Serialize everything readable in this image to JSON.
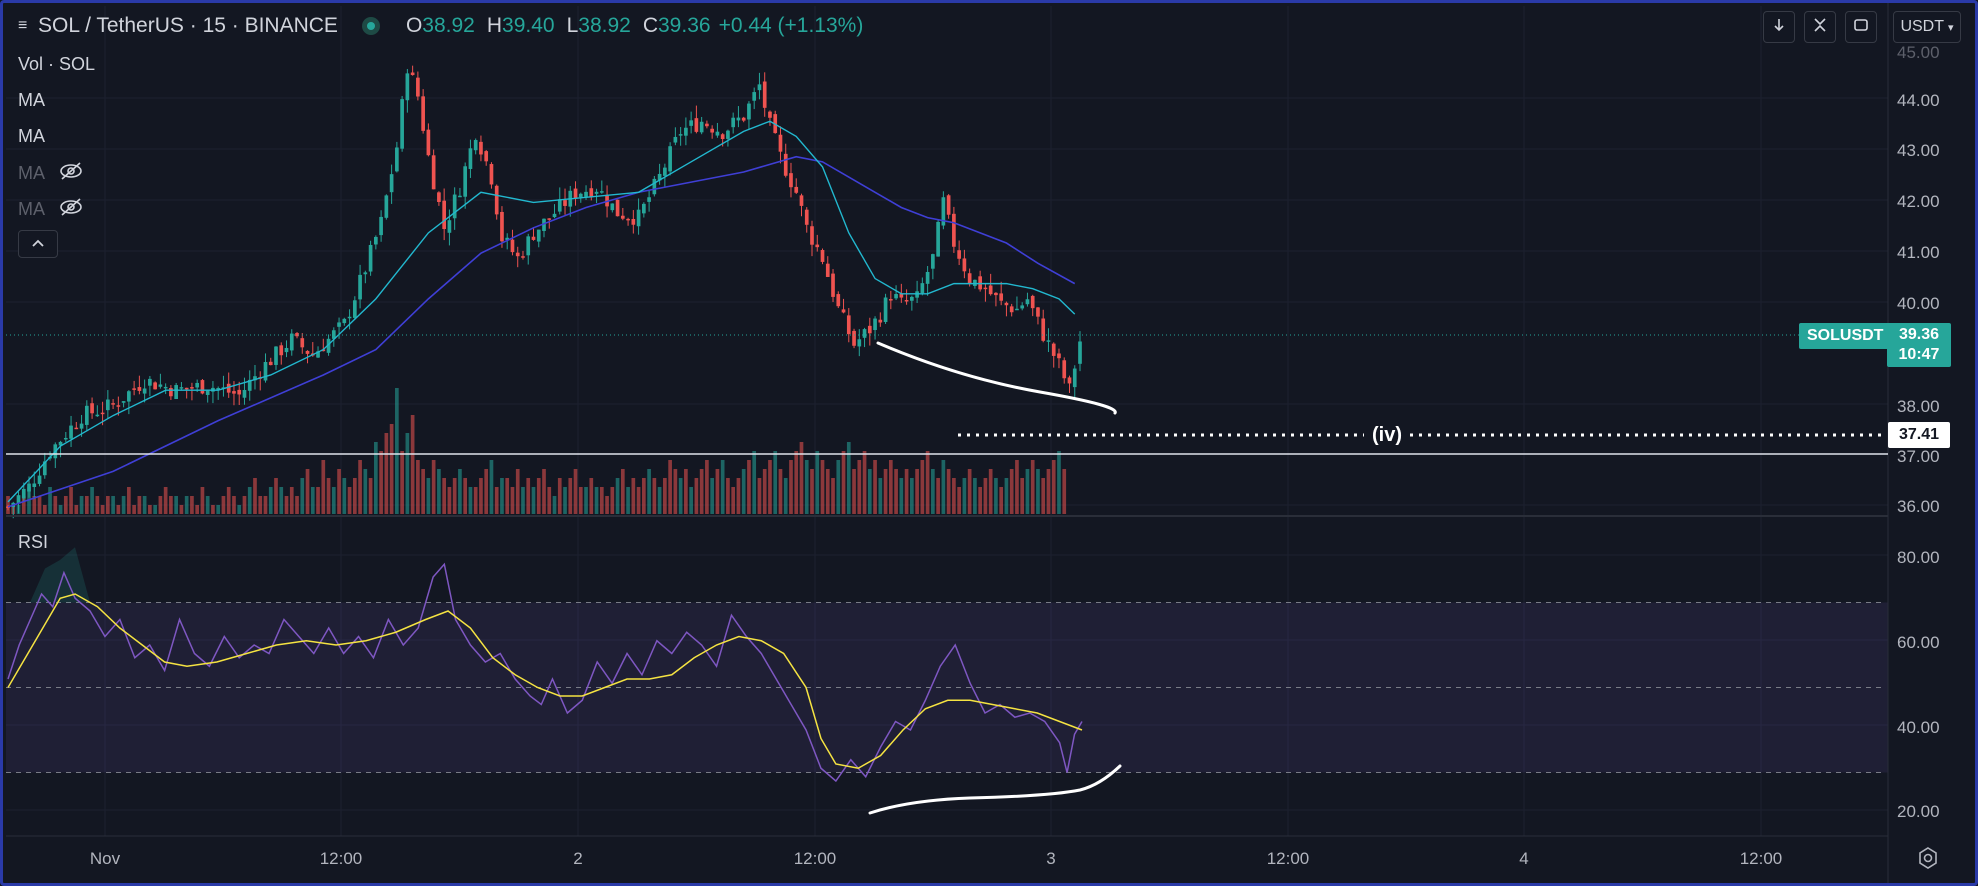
{
  "header": {
    "symbol": "SOL / TetherUS · 15 · BINANCE",
    "o_label": "O",
    "o_value": "38.92",
    "h_label": "H",
    "h_value": "39.40",
    "l_label": "L",
    "l_value": "38.92",
    "c_label": "C",
    "c_value": "39.36",
    "change": "+0.44 (+1.13%)",
    "currency": "USDT"
  },
  "indicators": {
    "vol": "Vol · SOL",
    "ma1": "MA",
    "ma2": "MA",
    "ma3": "MA",
    "ma4": "MA",
    "rsi": "RSI"
  },
  "price_scale": {
    "top_label": "45.00",
    "labels": [
      "44.00",
      "43.00",
      "42.00",
      "41.00",
      "40.00",
      "38.00",
      "37.00",
      "36.00"
    ],
    "current_symbol": "SOLUSDT",
    "current_price": "39.36",
    "countdown": "10:47",
    "level_value": "37.41",
    "level_label": "(iv)"
  },
  "rsi_scale": {
    "labels": [
      "80.00",
      "60.00",
      "40.00",
      "20.00"
    ]
  },
  "time_axis": {
    "labels": [
      "Nov",
      "12:00",
      "2",
      "12:00",
      "3",
      "12:00",
      "4",
      "12:00"
    ]
  },
  "colors": {
    "bg": "#131722",
    "up": "#26a69a",
    "down": "#ef5350",
    "ma_fast": "#22b8cf",
    "ma_slow": "#3f3fd6",
    "rsi": "#7e57c2",
    "rsi_ma": "#f5e342",
    "annotation": "#ffffff"
  },
  "chart_data": [
    {
      "type": "candlestick",
      "title": "SOL / TetherUS · 15 · BINANCE",
      "ylim": [
        35.8,
        45.2
      ],
      "close_path": [
        [
          0,
          36.1
        ],
        [
          4,
          36.5
        ],
        [
          8,
          37.2
        ],
        [
          14,
          37.9
        ],
        [
          20,
          38.1
        ],
        [
          26,
          38.6
        ],
        [
          32,
          38.4
        ],
        [
          38,
          38.5
        ],
        [
          44,
          38.3
        ],
        [
          48,
          38.8
        ],
        [
          54,
          39.4
        ],
        [
          58,
          39.1
        ],
        [
          64,
          39.7
        ],
        [
          68,
          40.8
        ],
        [
          71,
          41.7
        ],
        [
          74,
          43.2
        ],
        [
          76,
          44.8
        ],
        [
          78,
          44.2
        ],
        [
          80,
          43.0
        ],
        [
          83,
          41.6
        ],
        [
          86,
          42.4
        ],
        [
          89,
          43.5
        ],
        [
          92,
          42.6
        ],
        [
          94,
          41.4
        ],
        [
          97,
          41.0
        ],
        [
          100,
          41.5
        ],
        [
          104,
          41.9
        ],
        [
          108,
          42.3
        ],
        [
          112,
          42.4
        ],
        [
          116,
          41.9
        ],
        [
          120,
          41.8
        ],
        [
          124,
          42.6
        ],
        [
          128,
          43.5
        ],
        [
          132,
          43.7
        ],
        [
          136,
          43.5
        ],
        [
          140,
          43.8
        ],
        [
          143,
          44.4
        ],
        [
          145,
          43.6
        ],
        [
          147,
          43.0
        ],
        [
          150,
          42.3
        ],
        [
          152,
          41.6
        ],
        [
          155,
          41.0
        ],
        [
          158,
          40.0
        ],
        [
          161,
          39.3
        ],
        [
          164,
          39.6
        ],
        [
          166,
          39.9
        ],
        [
          168,
          40.3
        ],
        [
          170,
          40.1
        ],
        [
          173,
          40.2
        ],
        [
          176,
          41.0
        ],
        [
          178,
          42.1
        ],
        [
          180,
          41.3
        ],
        [
          183,
          40.6
        ],
        [
          186,
          40.4
        ],
        [
          189,
          40.1
        ],
        [
          192,
          40.0
        ],
        [
          194,
          40.2
        ],
        [
          197,
          39.5
        ],
        [
          200,
          38.9
        ],
        [
          202,
          38.4
        ],
        [
          204,
          39.36
        ]
      ],
      "ma_fast": [
        [
          0,
          36.2
        ],
        [
          10,
          37.3
        ],
        [
          20,
          37.9
        ],
        [
          30,
          38.4
        ],
        [
          40,
          38.4
        ],
        [
          50,
          38.7
        ],
        [
          60,
          39.2
        ],
        [
          70,
          40.2
        ],
        [
          80,
          41.5
        ],
        [
          90,
          42.3
        ],
        [
          100,
          42.1
        ],
        [
          110,
          42.2
        ],
        [
          120,
          42.3
        ],
        [
          130,
          42.9
        ],
        [
          140,
          43.5
        ],
        [
          145,
          43.7
        ],
        [
          150,
          43.4
        ],
        [
          155,
          42.8
        ],
        [
          160,
          41.5
        ],
        [
          165,
          40.6
        ],
        [
          170,
          40.3
        ],
        [
          175,
          40.3
        ],
        [
          180,
          40.5
        ],
        [
          190,
          40.5
        ],
        [
          195,
          40.4
        ],
        [
          200,
          40.2
        ],
        [
          203,
          39.9
        ]
      ],
      "ma_slow": [
        [
          0,
          36.1
        ],
        [
          20,
          36.8
        ],
        [
          40,
          37.8
        ],
        [
          60,
          38.7
        ],
        [
          70,
          39.2
        ],
        [
          80,
          40.2
        ],
        [
          90,
          41.1
        ],
        [
          100,
          41.6
        ],
        [
          110,
          42.0
        ],
        [
          120,
          42.3
        ],
        [
          130,
          42.5
        ],
        [
          140,
          42.7
        ],
        [
          150,
          43.0
        ],
        [
          155,
          42.9
        ],
        [
          160,
          42.6
        ],
        [
          165,
          42.3
        ],
        [
          170,
          42.0
        ],
        [
          175,
          41.8
        ],
        [
          180,
          41.7
        ],
        [
          190,
          41.3
        ],
        [
          196,
          40.9
        ],
        [
          203,
          40.5
        ]
      ],
      "volume": [
        2,
        1,
        1,
        2,
        3,
        2,
        2,
        1,
        3,
        2,
        1,
        2,
        3,
        1,
        2,
        2,
        3,
        2,
        1,
        2,
        2,
        1,
        2,
        3,
        1,
        2,
        2,
        1,
        1,
        2,
        3,
        2,
        2,
        1,
        2,
        2,
        1,
        3,
        2,
        1,
        1,
        2,
        3,
        2,
        1,
        2,
        3,
        4,
        2,
        2,
        3,
        4,
        3,
        2,
        3,
        2,
        4,
        5,
        3,
        3,
        6,
        4,
        3,
        5,
        4,
        3,
        4,
        6,
        5,
        4,
        8,
        7,
        9,
        10,
        14,
        7,
        9,
        11,
        6,
        5,
        4,
        6,
        5,
        4,
        3,
        4,
        5,
        4,
        3,
        3,
        4,
        5,
        6,
        3,
        4,
        4,
        3,
        5,
        3,
        4,
        3,
        4,
        5,
        3,
        2,
        4,
        3,
        4,
        5,
        3,
        3,
        4,
        3,
        3,
        2,
        3,
        4,
        5,
        3,
        4,
        3,
        4,
        5,
        4,
        3,
        4,
        6,
        5,
        4,
        5,
        3,
        4,
        5,
        6,
        4,
        5,
        6,
        4,
        3,
        4,
        5,
        6,
        7,
        4,
        5,
        6,
        7,
        5,
        4,
        6,
        7,
        8,
        6,
        5,
        7,
        6,
        5,
        4,
        6,
        7,
        8,
        5,
        6,
        7,
        5,
        6,
        4,
        5,
        6,
        5,
        4,
        5,
        4,
        5,
        6,
        7,
        5,
        4,
        6,
        5,
        4,
        3,
        4,
        5,
        4,
        3,
        4,
        5,
        4,
        3,
        4,
        5,
        6,
        4,
        5,
        6,
        5,
        4,
        5,
        6,
        7,
        5
      ]
    },
    {
      "type": "line",
      "title": "RSI",
      "ylim": [
        14,
        86
      ],
      "rsi": [
        [
          0,
          52
        ],
        [
          3,
          60
        ],
        [
          6,
          66
        ],
        [
          9,
          72
        ],
        [
          12,
          69
        ],
        [
          15,
          77
        ],
        [
          18,
          71
        ],
        [
          22,
          68
        ],
        [
          26,
          62
        ],
        [
          30,
          66
        ],
        [
          34,
          57
        ],
        [
          38,
          60
        ],
        [
          42,
          54
        ],
        [
          46,
          66
        ],
        [
          50,
          58
        ],
        [
          54,
          55
        ],
        [
          58,
          62
        ],
        [
          62,
          57
        ],
        [
          66,
          60
        ],
        [
          70,
          58
        ],
        [
          74,
          66
        ],
        [
          78,
          62
        ],
        [
          82,
          58
        ],
        [
          86,
          64
        ],
        [
          90,
          58
        ],
        [
          94,
          62
        ],
        [
          98,
          57
        ],
        [
          102,
          66
        ],
        [
          106,
          60
        ],
        [
          110,
          64
        ],
        [
          114,
          76
        ],
        [
          117,
          79
        ],
        [
          120,
          66
        ],
        [
          124,
          60
        ],
        [
          128,
          56
        ],
        [
          132,
          58
        ],
        [
          136,
          52
        ],
        [
          140,
          48
        ],
        [
          143,
          46
        ],
        [
          146,
          52
        ],
        [
          150,
          44
        ],
        [
          154,
          47
        ],
        [
          158,
          56
        ],
        [
          162,
          51
        ],
        [
          166,
          58
        ],
        [
          170,
          53
        ],
        [
          174,
          61
        ],
        [
          178,
          58
        ],
        [
          182,
          63
        ],
        [
          186,
          60
        ],
        [
          190,
          55
        ],
        [
          194,
          67
        ],
        [
          198,
          62
        ],
        [
          202,
          58
        ],
        [
          206,
          52
        ],
        [
          210,
          46
        ],
        [
          214,
          40
        ],
        [
          218,
          31
        ],
        [
          222,
          28
        ],
        [
          226,
          33
        ],
        [
          230,
          29
        ],
        [
          234,
          36
        ],
        [
          238,
          42
        ],
        [
          242,
          40
        ],
        [
          246,
          47
        ],
        [
          250,
          55
        ],
        [
          254,
          60
        ],
        [
          258,
          51
        ],
        [
          262,
          44
        ],
        [
          266,
          46
        ],
        [
          270,
          43
        ],
        [
          274,
          44
        ],
        [
          278,
          42
        ],
        [
          282,
          37
        ],
        [
          284,
          30
        ],
        [
          286,
          39
        ],
        [
          288,
          42
        ]
      ],
      "rsi_ma": [
        [
          0,
          50
        ],
        [
          8,
          62
        ],
        [
          14,
          71
        ],
        [
          18,
          72
        ],
        [
          24,
          69
        ],
        [
          30,
          64
        ],
        [
          36,
          60
        ],
        [
          42,
          56
        ],
        [
          48,
          55
        ],
        [
          56,
          56
        ],
        [
          64,
          58
        ],
        [
          72,
          60
        ],
        [
          80,
          61
        ],
        [
          88,
          60
        ],
        [
          96,
          61
        ],
        [
          104,
          63
        ],
        [
          112,
          66
        ],
        [
          118,
          68
        ],
        [
          124,
          64
        ],
        [
          130,
          57
        ],
        [
          136,
          53
        ],
        [
          142,
          50
        ],
        [
          148,
          48
        ],
        [
          154,
          48
        ],
        [
          160,
          50
        ],
        [
          166,
          52
        ],
        [
          172,
          52
        ],
        [
          178,
          53
        ],
        [
          184,
          57
        ],
        [
          190,
          60
        ],
        [
          196,
          62
        ],
        [
          202,
          61
        ],
        [
          208,
          58
        ],
        [
          214,
          50
        ],
        [
          218,
          38
        ],
        [
          222,
          32
        ],
        [
          228,
          31
        ],
        [
          234,
          34
        ],
        [
          240,
          40
        ],
        [
          246,
          45
        ],
        [
          252,
          47
        ],
        [
          258,
          47
        ],
        [
          264,
          46
        ],
        [
          270,
          45
        ],
        [
          276,
          44
        ],
        [
          282,
          42
        ],
        [
          288,
          40
        ]
      ],
      "bands": [
        30,
        50,
        70
      ]
    }
  ]
}
